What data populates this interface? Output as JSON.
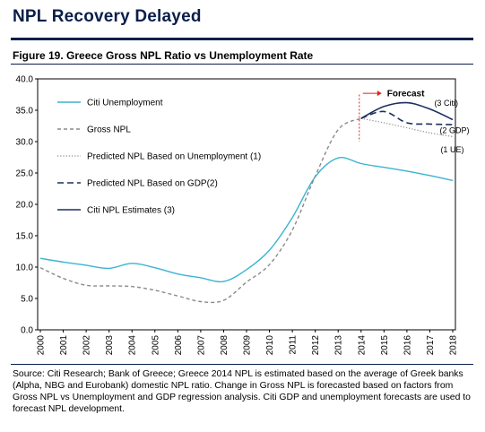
{
  "header": {
    "title": "NPL Recovery Delayed",
    "figure_title": "Figure 19. Greece Gross NPL Ratio vs Unemployment Rate"
  },
  "source_note": "Source: Citi Research; Bank of Greece; Greece 2014 NPL is estimated based on the average of Greek banks (Alpha, NBG and Eurobank) domestic NPL ratio. Change in Gross NPL is forecasted based on factors from Gross NPL vs Unemployment and GDP regression analysis. Citi GDP and unemployment forecasts are used to forecast NPL development.",
  "colors": {
    "unemployment": "#3ab4d0",
    "gross_npl": "#8a8a8a",
    "predicted_ue": "#8a8a8a",
    "predicted_gdp": "#1c2f5e",
    "citi_npl": "#1c2f5e",
    "forecast_marker": "#e02020",
    "brand": "#0a1f4a"
  },
  "chart_data": {
    "type": "line",
    "x": [
      "2000",
      "2001",
      "2002",
      "2003",
      "2004",
      "2005",
      "2006",
      "2007",
      "2008",
      "2009",
      "2010",
      "2011",
      "2012",
      "2013",
      "2014",
      "2015",
      "2016",
      "2017",
      "2018"
    ],
    "ylim": [
      0,
      40
    ],
    "yticks": [
      "0.0",
      "5.0",
      "10.0",
      "15.0",
      "20.0",
      "25.0",
      "30.0",
      "35.0",
      "40.0"
    ],
    "grid": false,
    "legend_position": "top-left",
    "series": [
      {
        "name": "Citi Unemployment",
        "style": "solid",
        "values": [
          11.4,
          10.8,
          10.3,
          9.8,
          10.6,
          9.9,
          8.9,
          8.3,
          7.7,
          9.6,
          12.7,
          17.9,
          24.4,
          27.4,
          26.5,
          25.9,
          25.3,
          24.6,
          23.8
        ]
      },
      {
        "name": "Gross NPL",
        "style": "dashed",
        "values": [
          9.9,
          8.2,
          7.1,
          7.0,
          6.9,
          6.3,
          5.4,
          4.5,
          4.7,
          7.6,
          10.4,
          15.9,
          24.5,
          31.9,
          33.7,
          null,
          null,
          null,
          null
        ]
      },
      {
        "name": "Predicted NPL Based on Unemployment (1)",
        "style": "dotted",
        "values": [
          null,
          null,
          null,
          null,
          null,
          null,
          null,
          null,
          null,
          null,
          null,
          null,
          null,
          null,
          33.7,
          33.0,
          32.2,
          31.4,
          30.8
        ]
      },
      {
        "name": "Predicted NPL Based on GDP(2)",
        "style": "long-dash",
        "values": [
          null,
          null,
          null,
          null,
          null,
          null,
          null,
          null,
          null,
          null,
          null,
          null,
          null,
          null,
          33.7,
          34.8,
          33.0,
          32.8,
          32.7
        ]
      },
      {
        "name": "Citi NPL Estimates (3)",
        "style": "solid",
        "values": [
          null,
          null,
          null,
          null,
          null,
          null,
          null,
          null,
          null,
          null,
          null,
          null,
          null,
          null,
          33.7,
          35.6,
          36.2,
          35.2,
          33.5
        ]
      }
    ],
    "annotations": {
      "forecast": "Forecast",
      "citi_label": "(3 Citi)",
      "gdp_label": "(2 GDP)",
      "ue_label": "(1 UE)"
    }
  }
}
